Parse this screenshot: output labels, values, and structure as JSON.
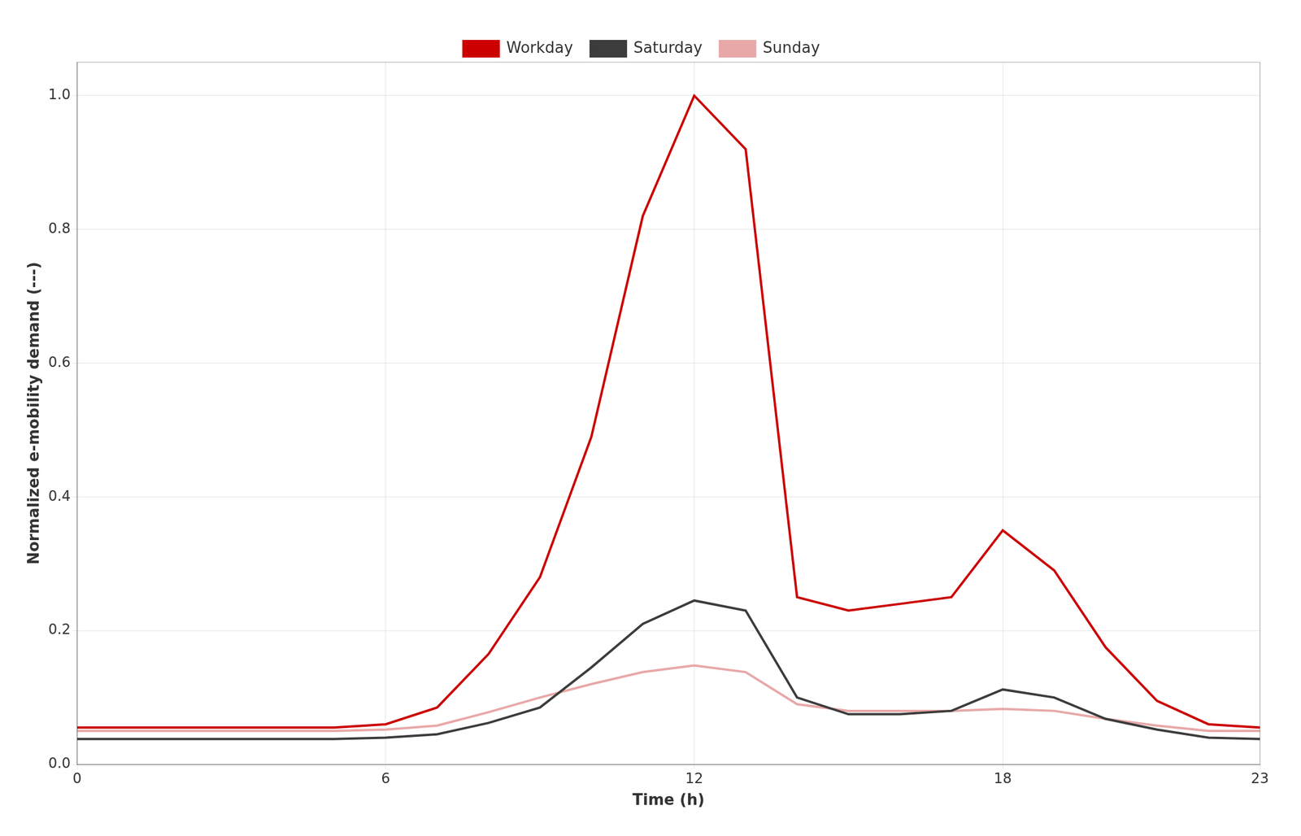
{
  "chart_data": {
    "type": "line",
    "xlabel": "Time (h)",
    "ylabel": "Normalized e-mobility demand (---)",
    "x": [
      0,
      1,
      2,
      3,
      4,
      5,
      6,
      7,
      8,
      9,
      10,
      11,
      12,
      13,
      14,
      15,
      16,
      17,
      18,
      19,
      20,
      21,
      22,
      23
    ],
    "series": [
      {
        "name": "Workday",
        "color": "#cc0000",
        "values": [
          0.055,
          0.055,
          0.055,
          0.055,
          0.055,
          0.055,
          0.06,
          0.085,
          0.165,
          0.28,
          0.49,
          0.82,
          1.0,
          0.92,
          0.25,
          0.23,
          0.24,
          0.25,
          0.35,
          0.29,
          0.175,
          0.095,
          0.06,
          0.055
        ]
      },
      {
        "name": "Saturday",
        "color": "#3c3c3c",
        "values": [
          0.038,
          0.038,
          0.038,
          0.038,
          0.038,
          0.038,
          0.04,
          0.045,
          0.062,
          0.085,
          0.145,
          0.21,
          0.245,
          0.23,
          0.1,
          0.075,
          0.075,
          0.08,
          0.112,
          0.1,
          0.068,
          0.052,
          0.04,
          0.038
        ]
      },
      {
        "name": "Sunday",
        "color": "#e8a8a8",
        "values": [
          0.05,
          0.05,
          0.05,
          0.05,
          0.05,
          0.05,
          0.052,
          0.058,
          0.078,
          0.1,
          0.12,
          0.138,
          0.148,
          0.138,
          0.09,
          0.08,
          0.08,
          0.08,
          0.083,
          0.08,
          0.068,
          0.058,
          0.05,
          0.05
        ]
      }
    ],
    "xlim": [
      0,
      23
    ],
    "ylim": [
      0.0,
      1.05
    ],
    "xticks": [
      0,
      6,
      12,
      18,
      23
    ],
    "yticks": [
      {
        "value": 0.0,
        "label": "0.0"
      },
      0.2,
      0.4,
      0.6,
      0.8,
      {
        "value": 1.0,
        "label": "1.0"
      }
    ],
    "grid": true,
    "legend": "top"
  }
}
